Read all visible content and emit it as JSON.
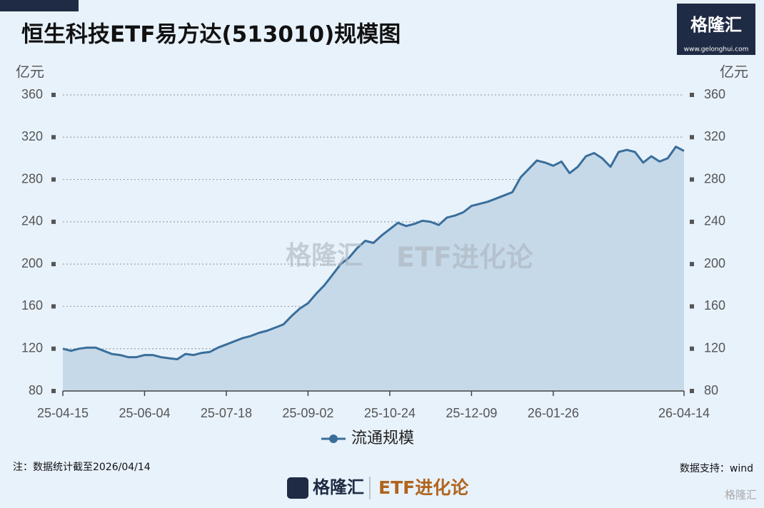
{
  "chart_data": {
    "type": "area",
    "title": "恒生科技ETF易方达(513010)规模图",
    "y_label": "亿元",
    "y2_label": "亿元",
    "categories": [
      "25-04-15",
      null,
      null,
      null,
      null,
      null,
      null,
      null,
      null,
      null,
      "25-06-04",
      null,
      null,
      null,
      null,
      null,
      null,
      null,
      null,
      null,
      "25-07-18",
      null,
      null,
      null,
      null,
      null,
      null,
      null,
      null,
      null,
      "25-09-02",
      null,
      null,
      null,
      null,
      null,
      null,
      null,
      null,
      null,
      "25-10-24",
      null,
      null,
      null,
      null,
      null,
      null,
      null,
      null,
      null,
      "25-12-09",
      null,
      null,
      null,
      null,
      null,
      null,
      null,
      null,
      null,
      "26-01-26",
      null,
      null,
      null,
      null,
      null,
      null,
      null,
      null,
      null,
      null,
      null,
      null,
      null,
      null,
      null,
      "26-04-14"
    ],
    "series": [
      {
        "name": "流通规模",
        "color": "#3a6e9a",
        "fill": "#c6d9e9",
        "values": [
          120,
          118,
          120,
          121,
          121,
          118,
          115,
          114,
          112,
          112,
          114,
          114,
          112,
          111,
          110,
          115,
          114,
          116,
          117,
          121,
          124,
          127,
          130,
          132,
          135,
          137,
          140,
          143,
          151,
          158,
          163,
          172,
          180,
          190,
          200,
          206,
          215,
          222,
          220,
          227,
          233,
          239,
          236,
          238,
          241,
          240,
          237,
          244,
          246,
          249,
          255,
          257,
          259,
          262,
          265,
          268,
          282,
          290,
          298,
          296,
          293,
          297,
          286,
          292,
          302,
          305,
          300,
          292,
          306,
          308,
          306,
          296,
          302,
          297,
          300,
          311,
          307
        ]
      }
    ],
    "ylim": [
      80,
      360
    ],
    "yticks": [
      80,
      120,
      160,
      200,
      240,
      280,
      320,
      360
    ],
    "y2lim": [
      80,
      360
    ],
    "y2ticks": [
      80,
      120,
      160,
      200,
      240,
      280,
      320,
      360
    ],
    "grid": true,
    "legend": "bottom"
  },
  "footnote": "注：数据统计截至2026/04/14",
  "source": "数据支持：wind",
  "branding": {
    "logo": "格隆汇",
    "url": "www.gelonghui.com",
    "column": "ETF进化论",
    "watermark_logo": "格隆汇",
    "watermark_column": "ETF进化论",
    "corner": "格隆汇"
  }
}
